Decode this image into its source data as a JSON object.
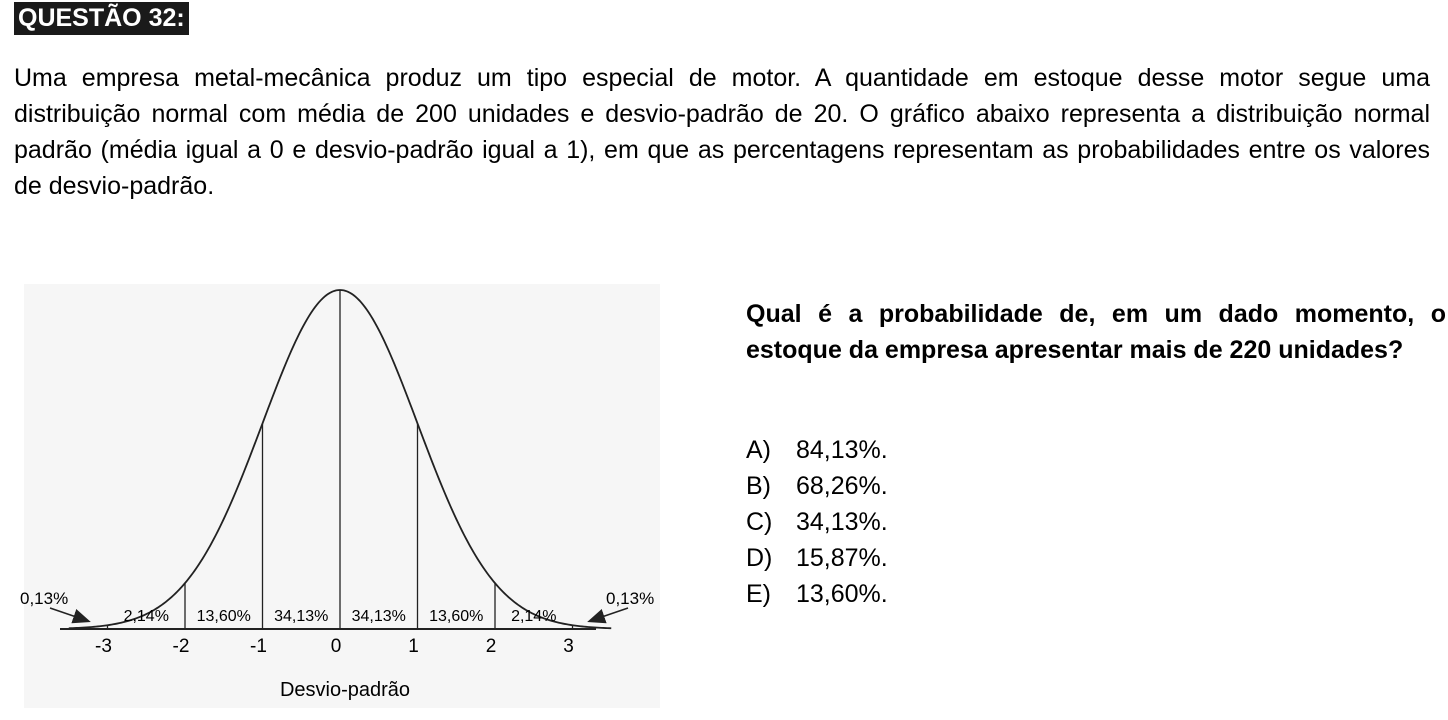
{
  "title": "QUESTÃO 32:",
  "intro": "Uma empresa metal-mecânica produz um tipo especial de motor. A quantidade em estoque desse motor segue uma distribuição normal com média de 200 unidades e desvio-padrão de 20. O gráfico abaixo representa a distribuição normal padrão (média igual a 0 e desvio-padrão igual a 1), em que as percentagens representam as probabilidades entre os valores de desvio-padrão.",
  "chart_data": {
    "type": "area",
    "x_ticks": [
      "-3",
      "-2",
      "-1",
      "0",
      "1",
      "2",
      "3"
    ],
    "x_tick_values": [
      -3,
      -2,
      -1,
      0,
      1,
      2,
      3
    ],
    "interval_labels": [
      "2,14%",
      "13,60%",
      "34,13%",
      "34,13%",
      "13,60%",
      "2,14%"
    ],
    "tail_left_label": "0,13%",
    "tail_right_label": "0,13%",
    "xlabel": "Desvio-padrão",
    "xlim": [
      -3.5,
      3.5
    ]
  },
  "question": "Qual é a probabilidade de, em um dado momento, o estoque da empresa apresentar mais de 220 unidades?",
  "options": [
    {
      "letter": "A)",
      "text": "84,13%."
    },
    {
      "letter": "B)",
      "text": "68,26%."
    },
    {
      "letter": "C)",
      "text": "34,13%."
    },
    {
      "letter": "D)",
      "text": "15,87%."
    },
    {
      "letter": "E)",
      "text": "13,60%."
    }
  ]
}
